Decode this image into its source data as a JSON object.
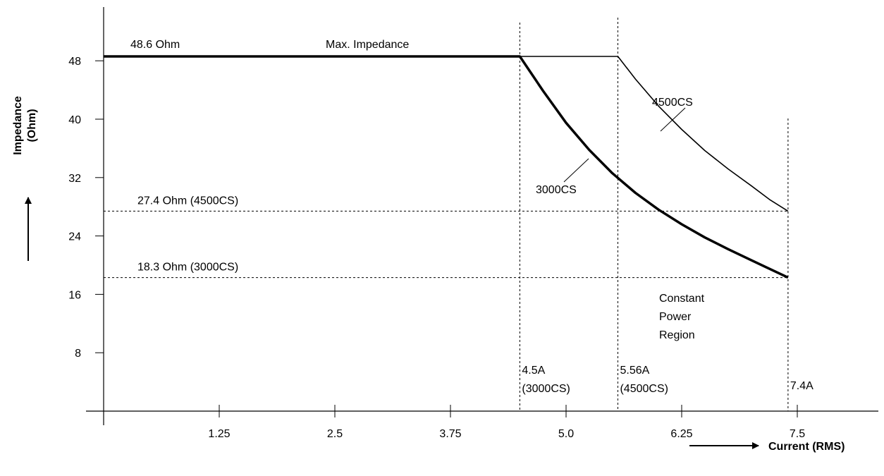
{
  "chart_data": {
    "type": "line",
    "xlabel": "Current (RMS)",
    "ylabel": "Impedance (Ohm)",
    "ylabel_lines": [
      "Impedance",
      "(Ohm)"
    ],
    "xlim": [
      0,
      8
    ],
    "ylim": [
      0,
      56
    ],
    "x_ticks": [
      {
        "value": 1.25,
        "label": "1.25"
      },
      {
        "value": 2.5,
        "label": "2.5"
      },
      {
        "value": 3.75,
        "label": "3.75"
      },
      {
        "value": 5.0,
        "label": "5.0"
      },
      {
        "value": 6.25,
        "label": "6.25"
      },
      {
        "value": 7.5,
        "label": "7.5"
      }
    ],
    "y_ticks": [
      {
        "value": 8,
        "label": "8"
      },
      {
        "value": 16,
        "label": "16"
      },
      {
        "value": 24,
        "label": "24"
      },
      {
        "value": 32,
        "label": "32"
      },
      {
        "value": 40,
        "label": "40"
      },
      {
        "value": 48,
        "label": "48"
      }
    ],
    "grid": false,
    "series": [
      {
        "name": "3000CS",
        "color": "#000000",
        "points": [
          [
            0,
            48.6
          ],
          [
            4.5,
            48.6
          ],
          [
            4.75,
            43.9
          ],
          [
            5.0,
            39.5
          ],
          [
            5.25,
            35.8
          ],
          [
            5.5,
            32.6
          ],
          [
            5.75,
            29.9
          ],
          [
            6.0,
            27.6
          ],
          [
            6.25,
            25.6
          ],
          [
            6.5,
            23.8
          ],
          [
            6.75,
            22.2
          ],
          [
            7.0,
            20.7
          ],
          [
            7.2,
            19.5
          ],
          [
            7.4,
            18.3
          ]
        ]
      },
      {
        "name": "4500CS",
        "color": "#000000",
        "points": [
          [
            0,
            48.6
          ],
          [
            5.56,
            48.6
          ],
          [
            5.75,
            45.5
          ],
          [
            6.0,
            41.8
          ],
          [
            6.25,
            38.6
          ],
          [
            6.5,
            35.7
          ],
          [
            6.75,
            33.2
          ],
          [
            7.0,
            30.9
          ],
          [
            7.2,
            29.0
          ],
          [
            7.4,
            27.4
          ]
        ]
      }
    ],
    "reference_lines": {
      "horizontal": [
        {
          "value": 27.4,
          "label": "27.4 Ohm (4500CS)"
        },
        {
          "value": 18.3,
          "label": "18.3 Ohm (3000CS)"
        }
      ],
      "vertical": [
        {
          "value": 4.5,
          "label_lines": [
            "4.5A",
            "(3000CS)"
          ]
        },
        {
          "value": 5.56,
          "label_lines": [
            "5.56A",
            "(4500CS)"
          ]
        },
        {
          "value": 7.4,
          "label_lines": [
            "7.4A"
          ]
        }
      ]
    },
    "annotations": {
      "max_impedance_value": "48.6 Ohm",
      "max_impedance_label": "Max. Impedance",
      "series_3000_label": "3000CS",
      "series_4500_label": "4500CS",
      "region_lines": [
        "Constant",
        "Power",
        "Region"
      ]
    }
  }
}
